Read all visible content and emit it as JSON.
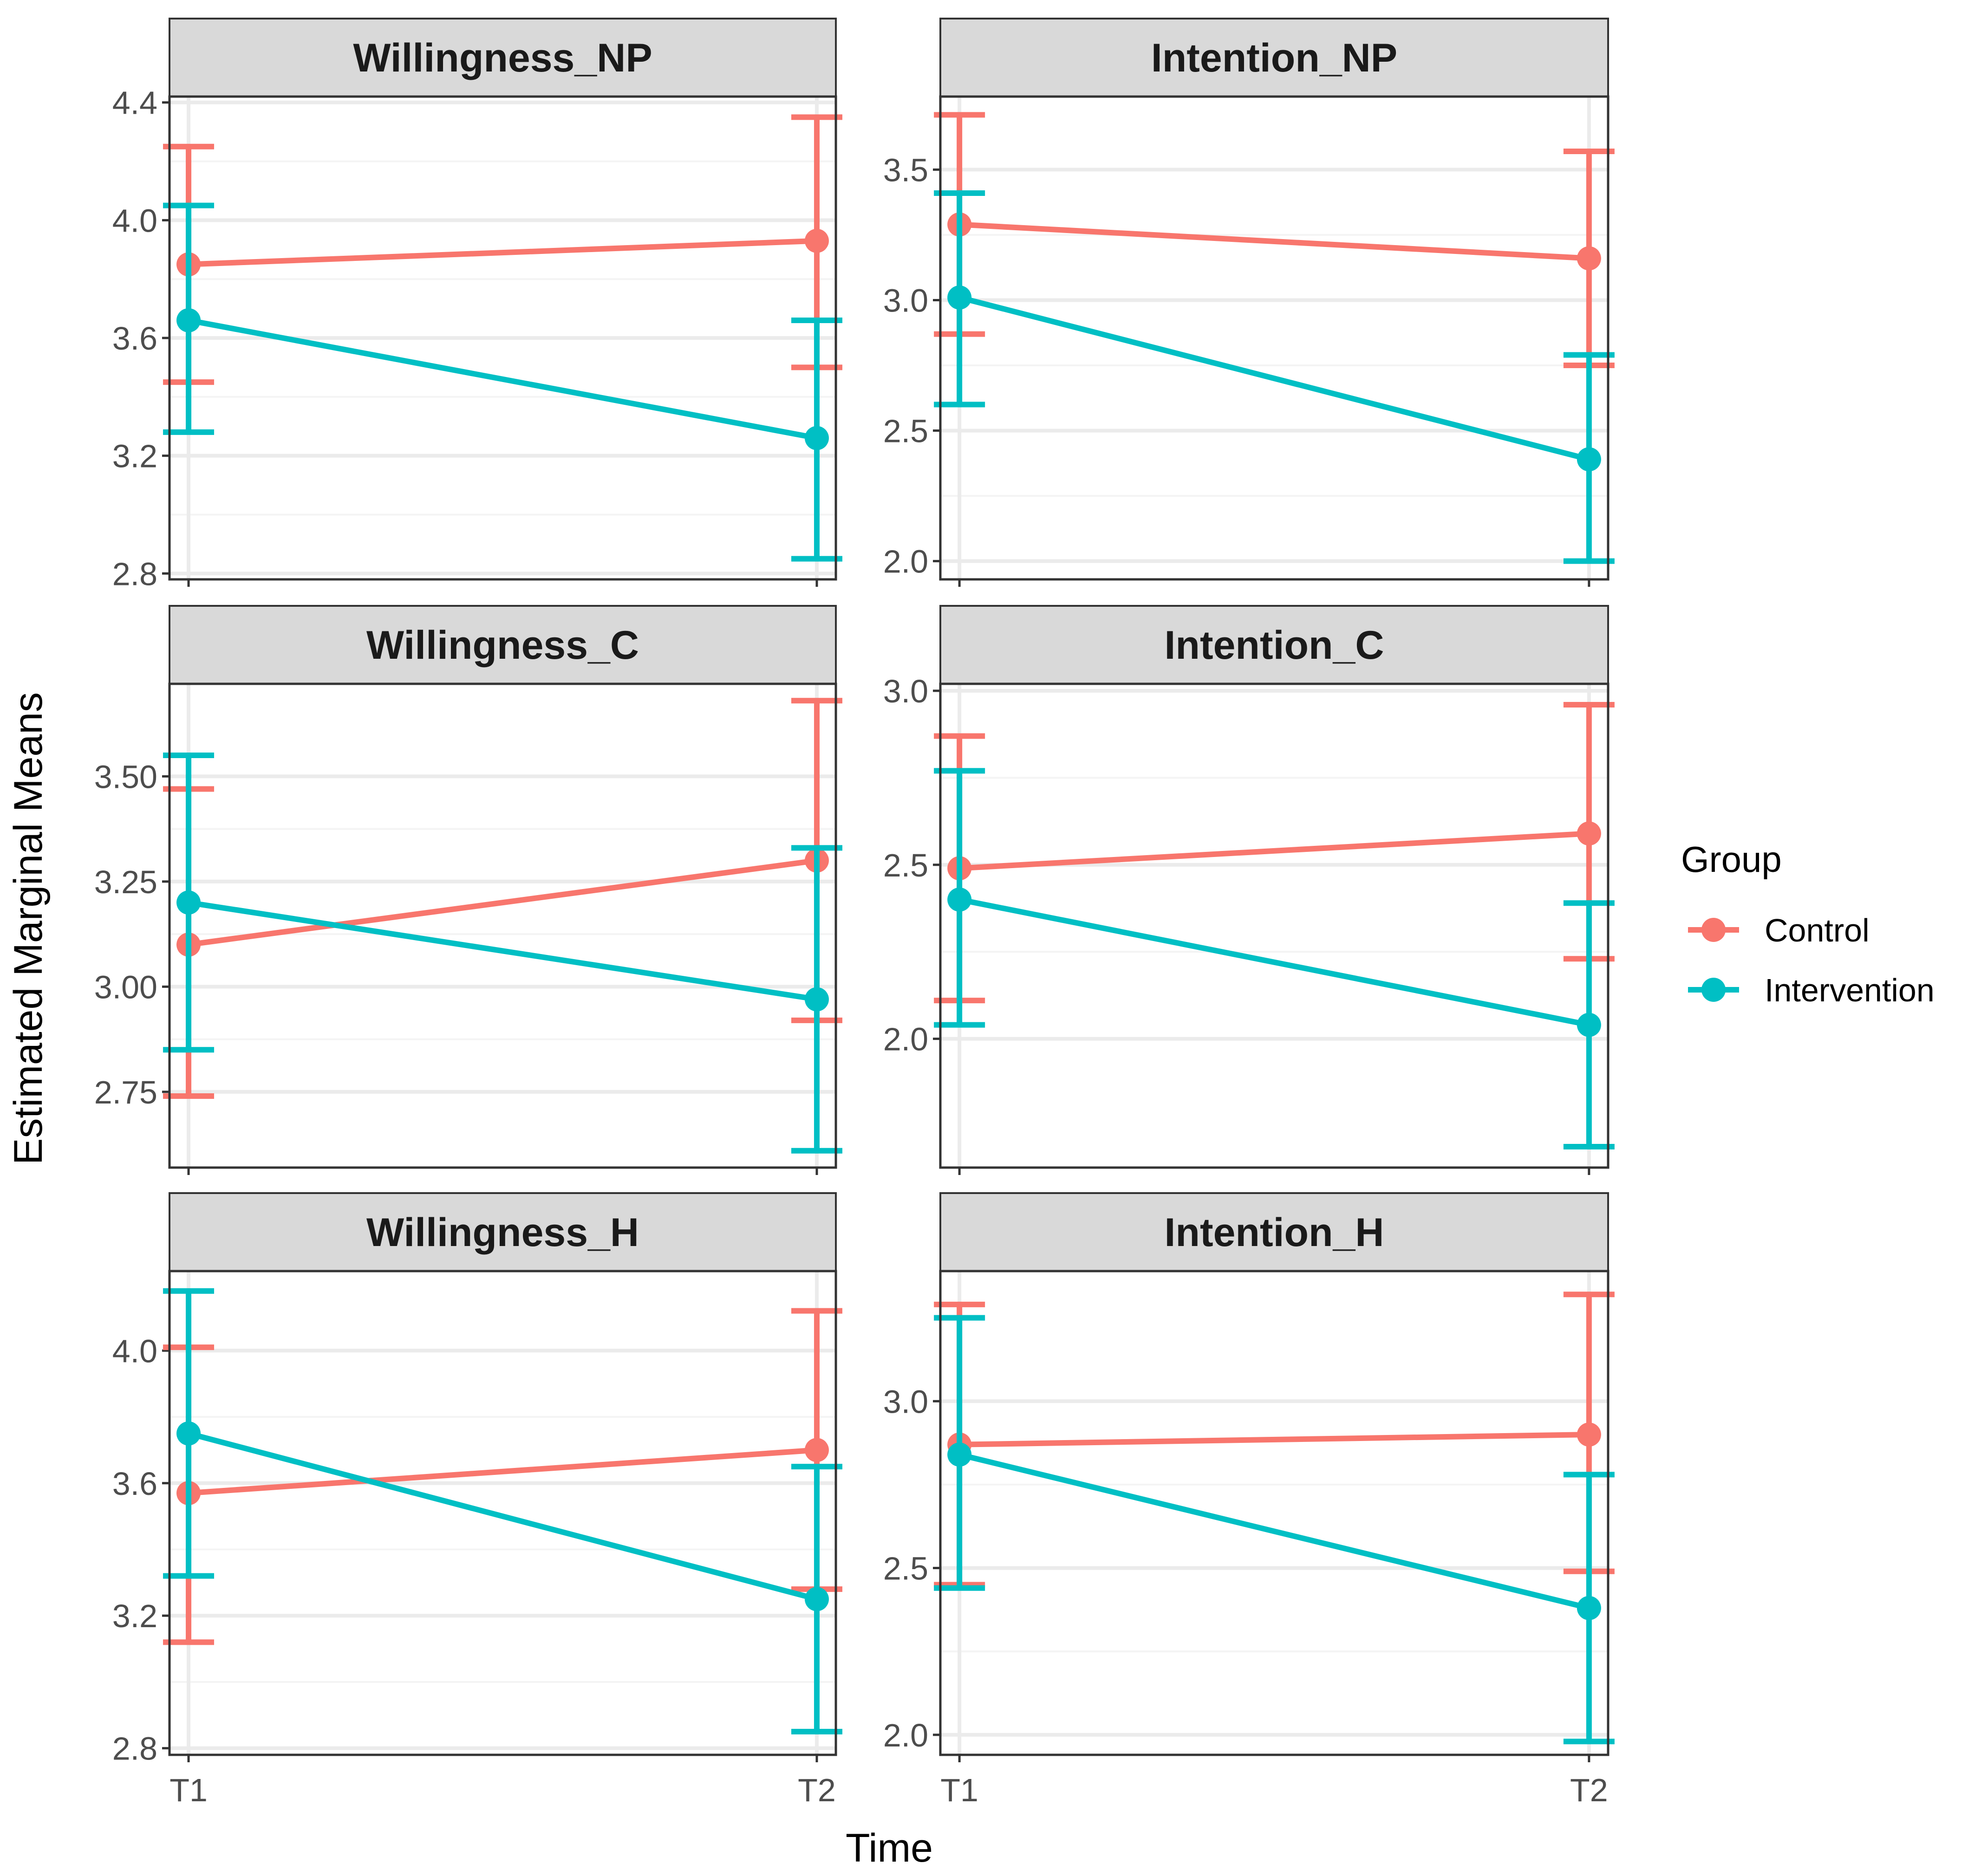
{
  "chart_data": {
    "type": "line",
    "xlabel": "Time",
    "ylabel": "Estimated Marginal Means",
    "x": [
      "T1",
      "T2"
    ],
    "legend": {
      "title": "Group",
      "position": "right",
      "entries": [
        {
          "name": "Control",
          "color": "#F8766D"
        },
        {
          "name": "Intervention",
          "color": "#00BFC4"
        }
      ]
    },
    "panels": [
      {
        "title": "Willingness_NP",
        "ylim": [
          2.78,
          4.42
        ],
        "yticks": [
          2.8,
          3.2,
          3.6,
          4.0,
          4.4
        ],
        "ytick_labels": [
          "2.8",
          "3.2",
          "3.6",
          "4.0",
          "4.4"
        ],
        "series": [
          {
            "name": "Control",
            "values": [
              3.85,
              3.93
            ],
            "lower": [
              3.45,
              3.5
            ],
            "upper": [
              4.25,
              4.35
            ]
          },
          {
            "name": "Intervention",
            "values": [
              3.66,
              3.26
            ],
            "lower": [
              3.28,
              2.85
            ],
            "upper": [
              4.05,
              3.66
            ]
          }
        ]
      },
      {
        "title": "Intention_NP",
        "ylim": [
          1.93,
          3.78
        ],
        "yticks": [
          2.0,
          2.5,
          3.0,
          3.5
        ],
        "ytick_labels": [
          "2.0",
          "2.5",
          "3.0",
          "3.5"
        ],
        "series": [
          {
            "name": "Control",
            "values": [
              3.29,
              3.16
            ],
            "lower": [
              2.87,
              2.75
            ],
            "upper": [
              3.71,
              3.57
            ]
          },
          {
            "name": "Intervention",
            "values": [
              3.01,
              2.39
            ],
            "lower": [
              2.6,
              2.0
            ],
            "upper": [
              3.41,
              2.79
            ]
          }
        ]
      },
      {
        "title": "Willingness_C",
        "ylim": [
          2.57,
          3.72
        ],
        "yticks": [
          2.75,
          3.0,
          3.25,
          3.5
        ],
        "ytick_labels": [
          "2.75",
          "3.00",
          "3.25",
          "3.50"
        ],
        "series": [
          {
            "name": "Control",
            "values": [
              3.1,
              3.3
            ],
            "lower": [
              2.74,
              2.92
            ],
            "upper": [
              3.47,
              3.68
            ]
          },
          {
            "name": "Intervention",
            "values": [
              3.2,
              2.97
            ],
            "lower": [
              2.85,
              2.61
            ],
            "upper": [
              3.55,
              3.33
            ]
          }
        ]
      },
      {
        "title": "Intention_C",
        "ylim": [
          1.63,
          3.02
        ],
        "yticks": [
          2.0,
          2.5,
          3.0
        ],
        "ytick_labels": [
          "2.0",
          "2.5",
          "3.0"
        ],
        "series": [
          {
            "name": "Control",
            "values": [
              2.49,
              2.59
            ],
            "lower": [
              2.11,
              2.23
            ],
            "upper": [
              2.87,
              2.96
            ]
          },
          {
            "name": "Intervention",
            "values": [
              2.4,
              2.04
            ],
            "lower": [
              2.04,
              1.69
            ],
            "upper": [
              2.77,
              2.39
            ]
          }
        ]
      },
      {
        "title": "Willingness_H",
        "ylim": [
          2.78,
          4.24
        ],
        "yticks": [
          2.8,
          3.2,
          3.6,
          4.0
        ],
        "ytick_labels": [
          "2.8",
          "3.2",
          "3.6",
          "4.0"
        ],
        "series": [
          {
            "name": "Control",
            "values": [
              3.57,
              3.7
            ],
            "lower": [
              3.12,
              3.28
            ],
            "upper": [
              4.01,
              4.12
            ]
          },
          {
            "name": "Intervention",
            "values": [
              3.75,
              3.25
            ],
            "lower": [
              3.32,
              2.85
            ],
            "upper": [
              4.18,
              3.65
            ]
          }
        ]
      },
      {
        "title": "Intention_H",
        "ylim": [
          1.94,
          3.39
        ],
        "yticks": [
          2.0,
          2.5,
          3.0
        ],
        "ytick_labels": [
          "2.0",
          "2.5",
          "3.0"
        ],
        "series": [
          {
            "name": "Control",
            "values": [
              2.87,
              2.9
            ],
            "lower": [
              2.45,
              2.49
            ],
            "upper": [
              3.29,
              3.32
            ]
          },
          {
            "name": "Intervention",
            "values": [
              2.84,
              2.38
            ],
            "lower": [
              2.44,
              1.98
            ],
            "upper": [
              3.25,
              2.78
            ]
          }
        ]
      }
    ]
  }
}
